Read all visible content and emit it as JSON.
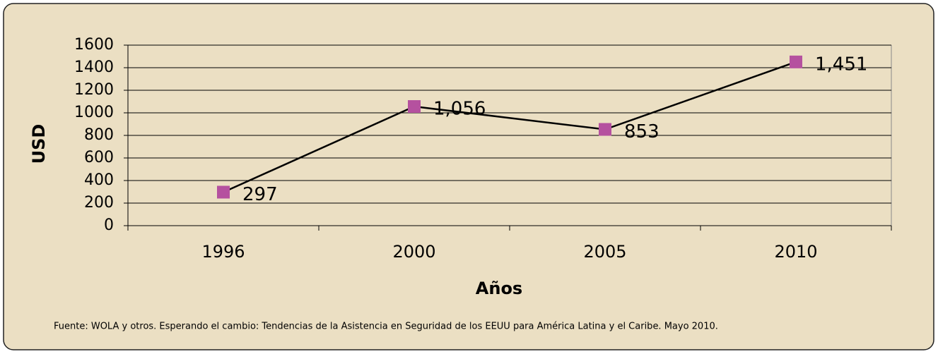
{
  "chart_data": {
    "type": "line",
    "categories": [
      "1996",
      "2000",
      "2005",
      "2010"
    ],
    "values": [
      297,
      1056,
      853,
      1451
    ],
    "value_labels": [
      "297",
      "1,056",
      "853",
      "1,451"
    ],
    "color": "#000000",
    "marker_color": "#b5519f",
    "ylim": [
      0,
      1600
    ],
    "yticks": [
      0,
      200,
      400,
      600,
      800,
      1000,
      1200,
      1400,
      1600
    ],
    "grid": true,
    "y_label": "USD",
    "x_label": "Años",
    "source": "Fuente: WOLA y otros. Esperando el cambio: Tendencias de la Asistencia en Seguridad de los EEUU para América Latina y el Caribe. Mayo 2010."
  }
}
